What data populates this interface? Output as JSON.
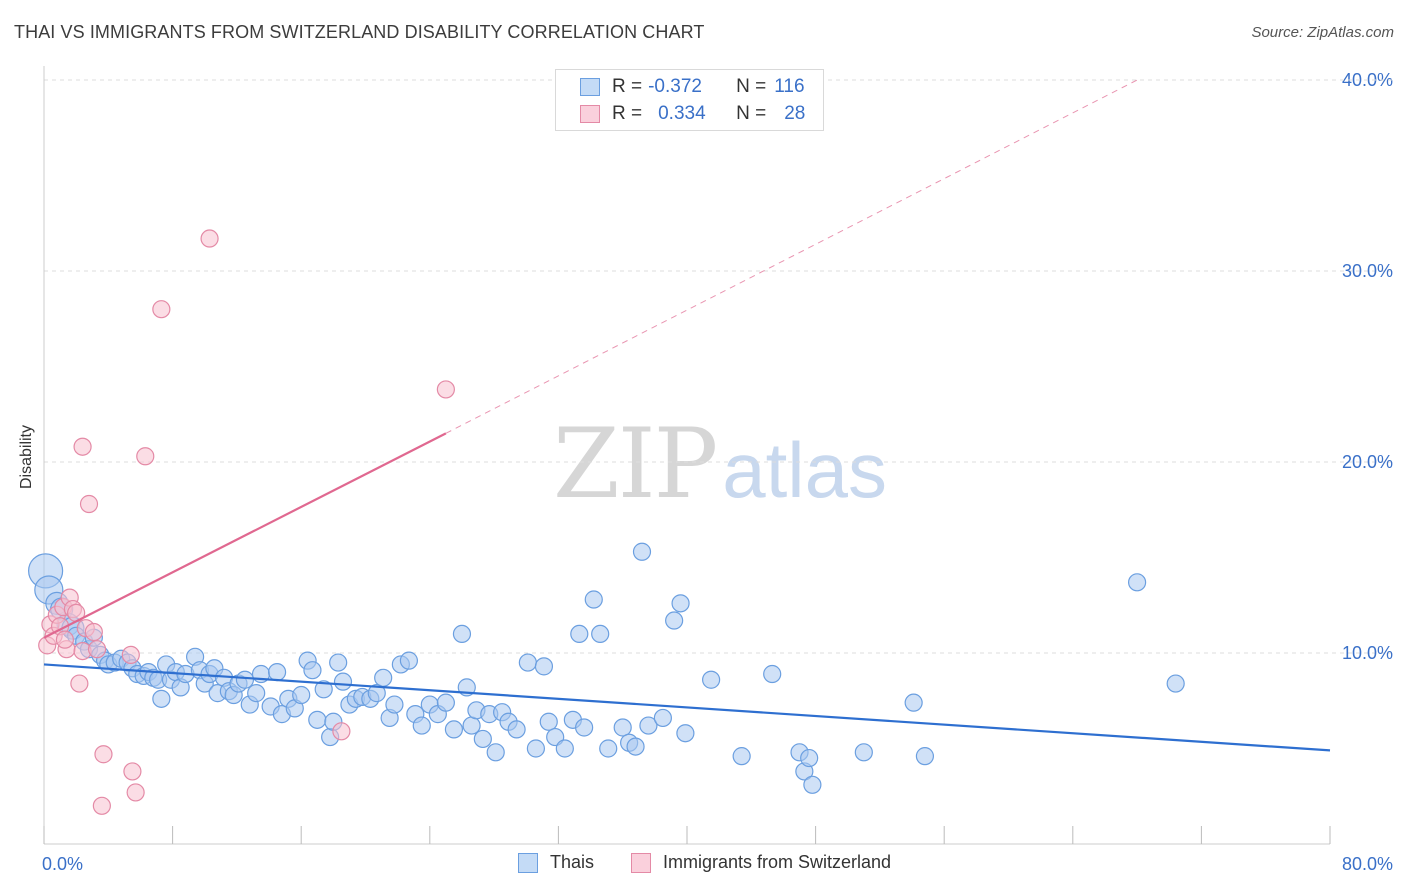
{
  "title": "THAI VS IMMIGRANTS FROM SWITZERLAND DISABILITY CORRELATION CHART",
  "source": "Source: ZipAtlas.com",
  "watermark": {
    "zip": "ZIP",
    "atlas": "atlas"
  },
  "legend_top": [
    {
      "r_label": "R =",
      "r_value": "-0.372",
      "n_label": "N =",
      "n_value": "116",
      "color": "#a9c8f0",
      "border": "#6b9fe0"
    },
    {
      "r_label": "R =",
      "r_value": "0.334",
      "n_label": "N =",
      "n_value": "28",
      "color": "#f7c1d0",
      "border": "#e48aa6"
    }
  ],
  "chart_data": {
    "type": "scatter",
    "title": "THAI VS IMMIGRANTS FROM SWITZERLAND DISABILITY CORRELATION CHART",
    "xlabel": "",
    "ylabel": "Disability",
    "xlim": [
      0,
      80
    ],
    "ylim": [
      0,
      40
    ],
    "x_tick_labels": [
      "0.0%",
      "80.0%"
    ],
    "y_ticks": [
      10,
      20,
      30,
      40
    ],
    "y_tick_labels": [
      "10.0%",
      "20.0%",
      "30.0%",
      "40.0%"
    ],
    "grid": "horizontal dashed",
    "legend_position": "bottom",
    "series": [
      {
        "name": "Thais",
        "color": "#6b9fe0",
        "fill": "#a9c8f0",
        "trend": {
          "x0": 0,
          "y0": 9.4,
          "x1": 80,
          "y1": 4.9,
          "color": "#2e6fd0"
        },
        "points": [
          [
            0.1,
            14.3
          ],
          [
            0.3,
            13.3
          ],
          [
            0.8,
            12.6
          ],
          [
            1.1,
            12.3
          ],
          [
            1.5,
            11.5
          ],
          [
            1.8,
            11.3
          ],
          [
            2.0,
            10.9
          ],
          [
            2.5,
            10.6
          ],
          [
            2.8,
            10.2
          ],
          [
            3.1,
            10.8
          ],
          [
            3.5,
            9.9
          ],
          [
            3.8,
            9.6
          ],
          [
            4.0,
            9.4
          ],
          [
            4.4,
            9.5
          ],
          [
            4.8,
            9.7
          ],
          [
            5.2,
            9.5
          ],
          [
            5.5,
            9.2
          ],
          [
            5.8,
            8.9
          ],
          [
            6.2,
            8.8
          ],
          [
            6.5,
            9.0
          ],
          [
            6.8,
            8.7
          ],
          [
            7.1,
            8.6
          ],
          [
            7.3,
            7.6
          ],
          [
            7.6,
            9.4
          ],
          [
            7.9,
            8.6
          ],
          [
            8.2,
            9.0
          ],
          [
            8.5,
            8.2
          ],
          [
            8.8,
            8.9
          ],
          [
            9.4,
            9.8
          ],
          [
            9.7,
            9.1
          ],
          [
            10.0,
            8.4
          ],
          [
            10.3,
            8.9
          ],
          [
            10.6,
            9.2
          ],
          [
            10.8,
            7.9
          ],
          [
            11.2,
            8.7
          ],
          [
            11.5,
            8.0
          ],
          [
            11.8,
            7.8
          ],
          [
            12.1,
            8.4
          ],
          [
            12.5,
            8.6
          ],
          [
            12.8,
            7.3
          ],
          [
            13.2,
            7.9
          ],
          [
            13.5,
            8.9
          ],
          [
            14.1,
            7.2
          ],
          [
            14.5,
            9.0
          ],
          [
            14.8,
            6.8
          ],
          [
            15.2,
            7.6
          ],
          [
            15.6,
            7.1
          ],
          [
            16.0,
            7.8
          ],
          [
            16.4,
            9.6
          ],
          [
            16.7,
            9.1
          ],
          [
            17.0,
            6.5
          ],
          [
            17.4,
            8.1
          ],
          [
            17.8,
            5.6
          ],
          [
            18.0,
            6.4
          ],
          [
            18.3,
            9.5
          ],
          [
            18.6,
            8.5
          ],
          [
            19.0,
            7.3
          ],
          [
            19.4,
            7.6
          ],
          [
            19.8,
            7.7
          ],
          [
            20.3,
            7.6
          ],
          [
            20.7,
            7.9
          ],
          [
            21.1,
            8.7
          ],
          [
            21.5,
            6.6
          ],
          [
            21.8,
            7.3
          ],
          [
            22.2,
            9.4
          ],
          [
            22.7,
            9.6
          ],
          [
            23.1,
            6.8
          ],
          [
            23.5,
            6.2
          ],
          [
            24.0,
            7.3
          ],
          [
            24.5,
            6.8
          ],
          [
            25.0,
            7.4
          ],
          [
            25.5,
            6.0
          ],
          [
            26.0,
            11.0
          ],
          [
            26.3,
            8.2
          ],
          [
            26.6,
            6.2
          ],
          [
            26.9,
            7.0
          ],
          [
            27.3,
            5.5
          ],
          [
            27.7,
            6.8
          ],
          [
            28.1,
            4.8
          ],
          [
            28.5,
            6.9
          ],
          [
            28.9,
            6.4
          ],
          [
            29.4,
            6.0
          ],
          [
            30.1,
            9.5
          ],
          [
            30.6,
            5.0
          ],
          [
            31.1,
            9.3
          ],
          [
            31.4,
            6.4
          ],
          [
            31.8,
            5.6
          ],
          [
            32.4,
            5.0
          ],
          [
            32.9,
            6.5
          ],
          [
            33.3,
            11.0
          ],
          [
            33.6,
            6.1
          ],
          [
            34.2,
            12.8
          ],
          [
            34.6,
            11.0
          ],
          [
            35.1,
            5.0
          ],
          [
            36.0,
            6.1
          ],
          [
            36.4,
            5.3
          ],
          [
            36.8,
            5.1
          ],
          [
            37.2,
            15.3
          ],
          [
            37.6,
            6.2
          ],
          [
            38.5,
            6.6
          ],
          [
            39.2,
            11.7
          ],
          [
            39.6,
            12.6
          ],
          [
            39.9,
            5.8
          ],
          [
            41.5,
            8.6
          ],
          [
            43.4,
            4.6
          ],
          [
            45.3,
            8.9
          ],
          [
            47.0,
            4.8
          ],
          [
            47.3,
            3.8
          ],
          [
            47.6,
            4.5
          ],
          [
            47.8,
            3.1
          ],
          [
            51.0,
            4.8
          ],
          [
            54.1,
            7.4
          ],
          [
            54.8,
            4.6
          ],
          [
            68.0,
            13.7
          ],
          [
            70.4,
            8.4
          ]
        ]
      },
      {
        "name": "Immigrants from Switzerland",
        "color": "#e48aa6",
        "fill": "#f7c1d0",
        "trend": {
          "x0": 0,
          "y0": 10.8,
          "x1": 25,
          "y1": 21.5,
          "dash_x1": 68,
          "dash_y1": 40,
          "color": "#e06890"
        },
        "points": [
          [
            0.2,
            10.4
          ],
          [
            0.4,
            11.5
          ],
          [
            0.6,
            10.9
          ],
          [
            0.8,
            12.0
          ],
          [
            1.0,
            11.4
          ],
          [
            1.2,
            12.4
          ],
          [
            1.4,
            10.2
          ],
          [
            1.6,
            12.9
          ],
          [
            1.8,
            12.3
          ],
          [
            2.0,
            12.1
          ],
          [
            2.2,
            8.4
          ],
          [
            2.4,
            10.1
          ],
          [
            2.6,
            11.3
          ],
          [
            3.1,
            11.1
          ],
          [
            3.7,
            4.7
          ],
          [
            2.4,
            20.8
          ],
          [
            2.8,
            17.8
          ],
          [
            6.3,
            20.3
          ],
          [
            7.3,
            28.0
          ],
          [
            10.3,
            31.7
          ],
          [
            25.0,
            23.8
          ],
          [
            18.5,
            5.9
          ],
          [
            5.5,
            3.8
          ],
          [
            5.7,
            2.7
          ],
          [
            3.6,
            2.0
          ],
          [
            5.4,
            9.9
          ],
          [
            3.3,
            10.2
          ],
          [
            1.3,
            10.7
          ]
        ]
      }
    ]
  },
  "bottom_legend": [
    {
      "label": "Thais",
      "color": "#a9c8f0",
      "border": "#6b9fe0"
    },
    {
      "label": "Immigrants from Switzerland",
      "color": "#f7c1d0",
      "border": "#e48aa6"
    }
  ]
}
